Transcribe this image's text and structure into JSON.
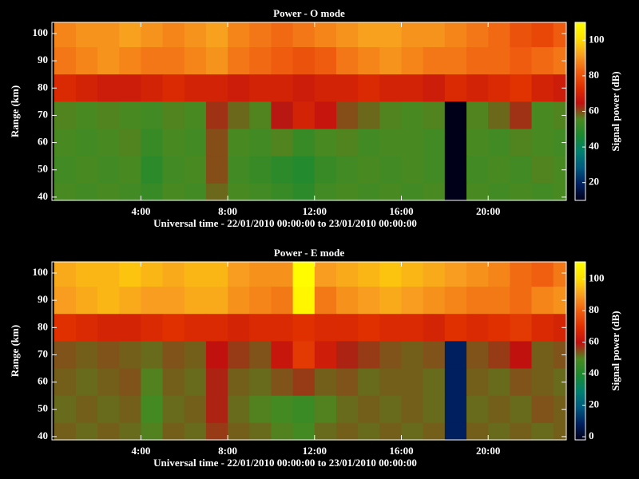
{
  "chart_data": [
    {
      "type": "heatmap",
      "title": "Power - O mode",
      "xlabel": "Universal time - 22/01/2010 00:00:00 to 23/01/2010 00:00:00",
      "ylabel": "Range (km)",
      "colorbar_label": "Signal power (dB)",
      "xlim": [
        -0.1,
        23.6
      ],
      "ylim": [
        38.8,
        104.1
      ],
      "clim": [
        10,
        110
      ],
      "xticks": [
        {
          "value": 4,
          "label": "4:00"
        },
        {
          "value": 8,
          "label": "8:00"
        },
        {
          "value": 12,
          "label": "12:00"
        },
        {
          "value": 16,
          "label": "16:00"
        },
        {
          "value": 20,
          "label": "20:00"
        }
      ],
      "yticks": [
        40,
        50,
        60,
        70,
        80,
        90,
        100
      ],
      "cticks": [
        20,
        40,
        60,
        80,
        100
      ],
      "colormap": [
        "#000018",
        "#002060",
        "#005a80",
        "#008070",
        "#1a8a30",
        "#4a8a20",
        "#c01010",
        "#e03000",
        "#f06010",
        "#f8a020",
        "#ffe000",
        "#ffff00"
      ],
      "x": [
        0.5,
        1.5,
        2.5,
        3.5,
        4.5,
        5.5,
        6.5,
        7.5,
        8.5,
        9.5,
        10.5,
        11.5,
        12.5,
        13.5,
        14.5,
        15.5,
        16.5,
        17.5,
        18.5,
        19.5,
        20.5,
        21.5,
        22.5,
        23.5
      ],
      "y": [
        100,
        90,
        80,
        70,
        60,
        50,
        40
      ],
      "z": [
        [
          88,
          90,
          90,
          92,
          90,
          88,
          90,
          92,
          88,
          86,
          84,
          86,
          88,
          90,
          92,
          92,
          90,
          90,
          88,
          86,
          84,
          80,
          78,
          82
        ],
        [
          86,
          88,
          90,
          88,
          86,
          86,
          88,
          90,
          86,
          84,
          82,
          80,
          82,
          86,
          88,
          90,
          88,
          86,
          86,
          84,
          84,
          82,
          84,
          86
        ],
        [
          72,
          70,
          68,
          68,
          70,
          72,
          70,
          70,
          68,
          70,
          70,
          68,
          70,
          70,
          72,
          70,
          70,
          68,
          72,
          70,
          72,
          74,
          70,
          68
        ],
        [
          56,
          55,
          56,
          55,
          54,
          56,
          55,
          62,
          58,
          56,
          64,
          70,
          66,
          60,
          58,
          56,
          55,
          56,
          10,
          56,
          58,
          62,
          55,
          56
        ],
        [
          55,
          54,
          55,
          56,
          52,
          55,
          54,
          60,
          55,
          54,
          56,
          52,
          55,
          56,
          54,
          55,
          55,
          54,
          10,
          55,
          54,
          56,
          55,
          54
        ],
        [
          54,
          55,
          54,
          55,
          50,
          54,
          55,
          60,
          54,
          52,
          50,
          48,
          52,
          54,
          55,
          54,
          55,
          54,
          10,
          54,
          55,
          54,
          56,
          55
        ],
        [
          55,
          54,
          55,
          54,
          52,
          55,
          54,
          58,
          55,
          54,
          52,
          50,
          54,
          55,
          54,
          55,
          54,
          55,
          10,
          55,
          54,
          55,
          54,
          55
        ]
      ]
    },
    {
      "type": "heatmap",
      "title": "Power - E mode",
      "xlabel": "Universal time - 22/01/2010 00:00:00 to 23/01/2010 00:00:00",
      "ylabel": "Range (km)",
      "colorbar_label": "Signal power (dB)",
      "xlim": [
        -0.1,
        23.6
      ],
      "ylim": [
        38.8,
        104.1
      ],
      "clim": [
        -2,
        111
      ],
      "xticks": [
        {
          "value": 4,
          "label": "4:00"
        },
        {
          "value": 8,
          "label": "8:00"
        },
        {
          "value": 12,
          "label": "12:00"
        },
        {
          "value": 16,
          "label": "16:00"
        },
        {
          "value": 20,
          "label": "20:00"
        }
      ],
      "yticks": [
        40,
        50,
        60,
        70,
        80,
        90,
        100
      ],
      "cticks": [
        0,
        20,
        40,
        60,
        80,
        100
      ],
      "colormap": [
        "#000018",
        "#002060",
        "#005a80",
        "#008070",
        "#1a8a30",
        "#4a8a20",
        "#c01010",
        "#e03000",
        "#f06010",
        "#f8a020",
        "#ffe000",
        "#ffff00"
      ],
      "x": [
        0.5,
        1.5,
        2.5,
        3.5,
        4.5,
        5.5,
        6.5,
        7.5,
        8.5,
        9.5,
        10.5,
        11.5,
        12.5,
        13.5,
        14.5,
        15.5,
        16.5,
        17.5,
        18.5,
        19.5,
        20.5,
        21.5,
        22.5,
        23.5
      ],
      "y": [
        100,
        90,
        80,
        70,
        60,
        50,
        40
      ],
      "z": [
        [
          92,
          94,
          94,
          96,
          94,
          92,
          94,
          94,
          90,
          88,
          88,
          110,
          90,
          92,
          94,
          96,
          94,
          92,
          90,
          88,
          86,
          82,
          80,
          84
        ],
        [
          90,
          92,
          94,
          92,
          90,
          90,
          92,
          92,
          88,
          86,
          84,
          108,
          84,
          88,
          90,
          92,
          90,
          88,
          86,
          84,
          84,
          82,
          86,
          88
        ],
        [
          70,
          68,
          66,
          66,
          68,
          70,
          68,
          68,
          66,
          68,
          68,
          70,
          68,
          68,
          70,
          68,
          68,
          66,
          70,
          68,
          70,
          72,
          68,
          66
        ],
        [
          54,
          53,
          54,
          53,
          52,
          54,
          53,
          60,
          56,
          54,
          62,
          72,
          64,
          58,
          56,
          54,
          53,
          54,
          8,
          54,
          56,
          60,
          53,
          54
        ],
        [
          53,
          52,
          53,
          54,
          50,
          53,
          52,
          58,
          53,
          52,
          54,
          56,
          53,
          54,
          52,
          53,
          53,
          52,
          8,
          53,
          52,
          54,
          53,
          52
        ],
        [
          52,
          53,
          52,
          53,
          48,
          52,
          53,
          58,
          52,
          50,
          48,
          46,
          50,
          52,
          53,
          52,
          53,
          52,
          8,
          52,
          53,
          52,
          54,
          53
        ],
        [
          53,
          52,
          53,
          52,
          50,
          53,
          52,
          56,
          53,
          52,
          50,
          48,
          52,
          53,
          52,
          53,
          52,
          53,
          8,
          53,
          52,
          53,
          52,
          53
        ]
      ]
    }
  ]
}
